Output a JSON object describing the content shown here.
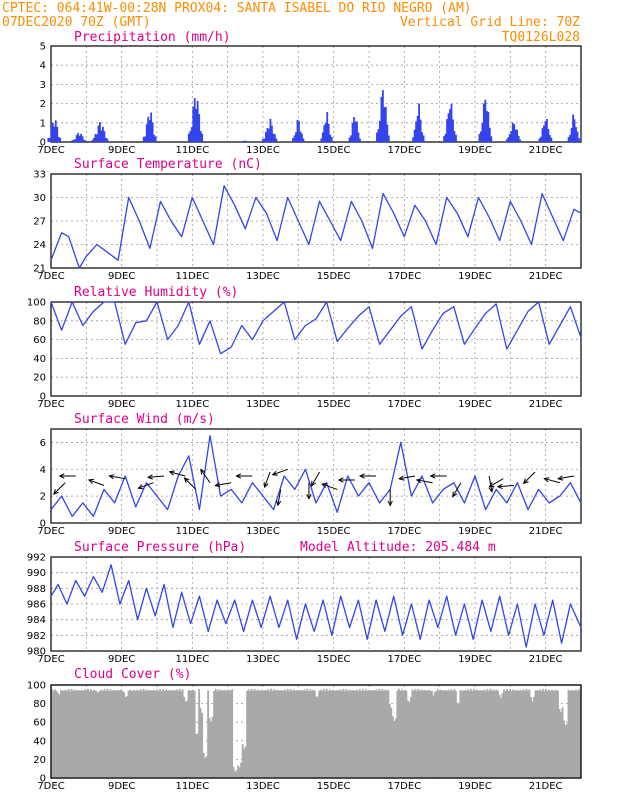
{
  "header": {
    "line1_left": "CPTEC:  064:41W-00:28N  PROX04: SANTA ISABEL DO RIO NEGRO (AM)",
    "line2_left": "07DEC2020 70Z (GMT)",
    "line2_right": "Vertical Grid Line: 70Z",
    "line3_right": "TQ0126L028"
  },
  "colors": {
    "series": "#3344ee",
    "cloud": "#a9a9a9",
    "title": "#e0008a",
    "header": "#ff8c00"
  },
  "chart_data": [
    {
      "type": "bar",
      "title": "Precipitation (mm/h)",
      "x_ticks": [
        "7DEC",
        "9DEC",
        "11DEC",
        "13DEC",
        "15DEC",
        "17DEC",
        "19DEC",
        "21DEC"
      ],
      "x_range_days": [
        7,
        22
      ],
      "ylim": [
        0,
        5
      ],
      "y_ticks": [
        0,
        1,
        2,
        3,
        4,
        5
      ],
      "bursts": [
        {
          "day": 7.1,
          "peak": 1.5,
          "width": 0.35
        },
        {
          "day": 7.8,
          "peak": 0.6,
          "width": 0.4
        },
        {
          "day": 8.4,
          "peak": 1.2,
          "width": 0.45
        },
        {
          "day": 9.8,
          "peak": 2.0,
          "width": 0.35
        },
        {
          "day": 11.1,
          "peak": 3.0,
          "width": 0.4
        },
        {
          "day": 12.5,
          "peak": 0.1,
          "width": 0.2
        },
        {
          "day": 13.2,
          "peak": 1.3,
          "width": 0.4
        },
        {
          "day": 14.0,
          "peak": 1.4,
          "width": 0.3
        },
        {
          "day": 14.8,
          "peak": 1.8,
          "width": 0.3
        },
        {
          "day": 15.6,
          "peak": 1.8,
          "width": 0.3
        },
        {
          "day": 16.4,
          "peak": 3.3,
          "width": 0.35
        },
        {
          "day": 17.4,
          "peak": 2.3,
          "width": 0.3
        },
        {
          "day": 18.3,
          "peak": 2.5,
          "width": 0.35
        },
        {
          "day": 19.3,
          "peak": 2.8,
          "width": 0.35
        },
        {
          "day": 20.1,
          "peak": 1.2,
          "width": 0.4
        },
        {
          "day": 21.0,
          "peak": 1.5,
          "width": 0.35
        },
        {
          "day": 21.8,
          "peak": 1.7,
          "width": 0.3
        }
      ]
    },
    {
      "type": "line",
      "title": "Surface Temperature (nC)",
      "x_ticks": [
        "7DEC",
        "9DEC",
        "11DEC",
        "13DEC",
        "15DEC",
        "17DEC",
        "19DEC",
        "21DEC"
      ],
      "ylim": [
        21,
        33
      ],
      "y_ticks": [
        21,
        24,
        27,
        30,
        33
      ],
      "x": [
        7.0,
        7.3,
        7.5,
        7.8,
        8.0,
        8.3,
        8.6,
        8.9,
        9.2,
        9.5,
        9.8,
        10.1,
        10.4,
        10.7,
        11.0,
        11.3,
        11.6,
        11.9,
        12.2,
        12.5,
        12.8,
        13.1,
        13.4,
        13.7,
        14.0,
        14.3,
        14.6,
        14.9,
        15.2,
        15.5,
        15.8,
        16.1,
        16.4,
        16.7,
        17.0,
        17.3,
        17.6,
        17.9,
        18.2,
        18.5,
        18.8,
        19.1,
        19.4,
        19.7,
        20.0,
        20.3,
        20.6,
        20.9,
        21.2,
        21.5,
        21.8,
        22.0
      ],
      "y": [
        22.0,
        25.5,
        25.0,
        21.0,
        22.5,
        24.0,
        23.0,
        22.0,
        30.0,
        27.0,
        23.5,
        29.5,
        27.0,
        25.0,
        30.0,
        27.0,
        24.0,
        31.5,
        29.0,
        26.0,
        30.0,
        28.0,
        24.5,
        30.0,
        27.0,
        24.0,
        29.5,
        27.0,
        24.5,
        29.5,
        27.0,
        23.5,
        30.5,
        28.0,
        25.0,
        29.0,
        27.0,
        24.0,
        30.0,
        28.0,
        25.0,
        30.0,
        27.5,
        24.5,
        29.5,
        27.0,
        24.0,
        30.5,
        27.5,
        24.5,
        28.5,
        28.0
      ]
    },
    {
      "type": "line",
      "title": "Relative Humidity (%)",
      "x_ticks": [
        "7DEC",
        "9DEC",
        "11DEC",
        "13DEC",
        "15DEC",
        "17DEC",
        "19DEC",
        "21DEC"
      ],
      "ylim": [
        0,
        100
      ],
      "y_ticks": [
        0,
        20,
        40,
        60,
        80,
        100
      ],
      "x": [
        7.0,
        7.3,
        7.6,
        7.9,
        8.2,
        8.5,
        8.8,
        9.1,
        9.4,
        9.7,
        10.0,
        10.3,
        10.6,
        10.9,
        11.2,
        11.5,
        11.8,
        12.1,
        12.4,
        12.7,
        13.0,
        13.3,
        13.6,
        13.9,
        14.2,
        14.5,
        14.8,
        15.1,
        15.4,
        15.7,
        16.0,
        16.3,
        16.6,
        16.9,
        17.2,
        17.5,
        17.8,
        18.1,
        18.4,
        18.7,
        19.0,
        19.3,
        19.6,
        19.9,
        20.2,
        20.5,
        20.8,
        21.1,
        21.4,
        21.7,
        22.0
      ],
      "y": [
        100,
        70,
        100,
        75,
        90,
        100,
        100,
        55,
        78,
        80,
        100,
        60,
        75,
        100,
        55,
        80,
        45,
        52,
        75,
        60,
        80,
        90,
        100,
        60,
        75,
        82,
        100,
        58,
        72,
        85,
        95,
        55,
        70,
        85,
        95,
        50,
        70,
        88,
        95,
        55,
        72,
        88,
        98,
        50,
        70,
        90,
        100,
        55,
        75,
        95,
        62
      ]
    },
    {
      "type": "line",
      "title": "Surface Wind (m/s)",
      "x_ticks": [
        "7DEC",
        "9DEC",
        "11DEC",
        "13DEC",
        "15DEC",
        "17DEC",
        "19DEC",
        "21DEC"
      ],
      "ylim": [
        0,
        7
      ],
      "y_ticks": [
        0,
        2,
        4,
        6
      ],
      "x": [
        7.0,
        7.3,
        7.6,
        7.9,
        8.2,
        8.5,
        8.8,
        9.1,
        9.4,
        9.7,
        10.0,
        10.3,
        10.6,
        10.9,
        11.2,
        11.5,
        11.8,
        12.1,
        12.4,
        12.7,
        13.0,
        13.3,
        13.6,
        13.9,
        14.2,
        14.5,
        14.8,
        15.1,
        15.4,
        15.7,
        16.0,
        16.3,
        16.6,
        16.9,
        17.2,
        17.5,
        17.8,
        18.1,
        18.4,
        18.7,
        19.0,
        19.3,
        19.6,
        19.9,
        20.2,
        20.5,
        20.8,
        21.1,
        21.4,
        21.7,
        22.0
      ],
      "y": [
        1.0,
        2.0,
        0.5,
        1.5,
        0.5,
        2.5,
        1.5,
        3.5,
        1.2,
        3.0,
        2.0,
        1.0,
        3.5,
        5.0,
        1.0,
        6.5,
        2.0,
        2.5,
        1.5,
        3.0,
        2.0,
        1.0,
        3.5,
        2.5,
        4.0,
        1.5,
        3.0,
        0.8,
        3.5,
        2.0,
        3.0,
        1.5,
        2.5,
        6.0,
        2.0,
        3.5,
        1.5,
        2.5,
        3.0,
        1.5,
        3.5,
        1.0,
        2.5,
        1.5,
        3.0,
        1.0,
        2.5,
        1.5,
        2.0,
        3.0,
        1.5
      ],
      "arrows": [
        {
          "day": 7.4,
          "speed": 3.0,
          "dir_deg": 135
        },
        {
          "day": 7.7,
          "speed": 3.5,
          "dir_deg": 180
        },
        {
          "day": 8.5,
          "speed": 2.8,
          "dir_deg": 200
        },
        {
          "day": 9.1,
          "speed": 3.3,
          "dir_deg": 190
        },
        {
          "day": 9.9,
          "speed": 3.0,
          "dir_deg": 160
        },
        {
          "day": 10.2,
          "speed": 3.5,
          "dir_deg": 175
        },
        {
          "day": 10.8,
          "speed": 3.5,
          "dir_deg": 195
        },
        {
          "day": 11.1,
          "speed": 2.5,
          "dir_deg": 225
        },
        {
          "day": 11.5,
          "speed": 3.0,
          "dir_deg": 235
        },
        {
          "day": 12.1,
          "speed": 3.0,
          "dir_deg": 170
        },
        {
          "day": 12.7,
          "speed": 3.5,
          "dir_deg": 180
        },
        {
          "day": 13.2,
          "speed": 3.8,
          "dir_deg": 110
        },
        {
          "day": 13.5,
          "speed": 2.5,
          "dir_deg": 100
        },
        {
          "day": 13.7,
          "speed": 4.0,
          "dir_deg": 160
        },
        {
          "day": 14.3,
          "speed": 3.0,
          "dir_deg": 90
        },
        {
          "day": 14.6,
          "speed": 3.8,
          "dir_deg": 120
        },
        {
          "day": 15.1,
          "speed": 2.5,
          "dir_deg": 200
        },
        {
          "day": 15.6,
          "speed": 3.2,
          "dir_deg": 180
        },
        {
          "day": 16.2,
          "speed": 3.5,
          "dir_deg": 180
        },
        {
          "day": 16.6,
          "speed": 2.5,
          "dir_deg": 90
        },
        {
          "day": 17.3,
          "speed": 3.5,
          "dir_deg": 170
        },
        {
          "day": 17.8,
          "speed": 3.0,
          "dir_deg": 190
        },
        {
          "day": 18.2,
          "speed": 3.5,
          "dir_deg": 180
        },
        {
          "day": 18.6,
          "speed": 3.0,
          "dir_deg": 120
        },
        {
          "day": 19.4,
          "speed": 3.5,
          "dir_deg": 80
        },
        {
          "day": 19.8,
          "speed": 3.3,
          "dir_deg": 150
        },
        {
          "day": 20.1,
          "speed": 2.8,
          "dir_deg": 175
        },
        {
          "day": 20.7,
          "speed": 3.8,
          "dir_deg": 135
        },
        {
          "day": 21.4,
          "speed": 3.0,
          "dir_deg": 195
        },
        {
          "day": 21.8,
          "speed": 3.5,
          "dir_deg": 170
        }
      ]
    },
    {
      "type": "line",
      "title": "Surface Pressure (hPa)",
      "subtitle": "Model Altitude: 205.484 m",
      "x_ticks": [
        "7DEC",
        "9DEC",
        "11DEC",
        "13DEC",
        "15DEC",
        "17DEC",
        "19DEC",
        "21DEC"
      ],
      "ylim": [
        980,
        992
      ],
      "y_ticks": [
        980,
        982,
        984,
        986,
        988,
        990,
        992
      ],
      "x": [
        7.0,
        7.2,
        7.45,
        7.7,
        7.95,
        8.2,
        8.45,
        8.7,
        8.95,
        9.2,
        9.45,
        9.7,
        9.95,
        10.2,
        10.45,
        10.7,
        10.95,
        11.2,
        11.45,
        11.7,
        11.95,
        12.2,
        12.45,
        12.7,
        12.95,
        13.2,
        13.45,
        13.7,
        13.95,
        14.2,
        14.45,
        14.7,
        14.95,
        15.2,
        15.45,
        15.7,
        15.95,
        16.2,
        16.45,
        16.7,
        16.95,
        17.2,
        17.45,
        17.7,
        17.95,
        18.2,
        18.45,
        18.7,
        18.95,
        19.2,
        19.45,
        19.7,
        19.95,
        20.2,
        20.45,
        20.7,
        20.95,
        21.2,
        21.45,
        21.7,
        22.0
      ],
      "y": [
        987,
        988.5,
        986,
        989,
        987,
        989.5,
        987.5,
        991,
        986,
        989,
        984,
        988,
        984.5,
        988.5,
        983,
        987.5,
        983.5,
        987,
        982.5,
        986.5,
        983.5,
        986.5,
        982.5,
        986.5,
        983,
        987,
        983,
        986.5,
        981.5,
        986,
        982.5,
        986.5,
        982,
        987,
        983,
        986.5,
        981.5,
        986.5,
        982.5,
        987,
        982,
        986,
        981.5,
        986.5,
        983,
        987,
        982,
        986,
        981.5,
        986.5,
        982.5,
        987,
        982,
        986,
        980.5,
        986,
        982,
        986.5,
        981,
        986,
        983
      ]
    },
    {
      "type": "bar",
      "title": "Cloud Cover (%)",
      "x_ticks": [
        "7DEC",
        "9DEC",
        "11DEC",
        "13DEC",
        "15DEC",
        "17DEC",
        "19DEC",
        "21DEC"
      ],
      "ylim": [
        0,
        100
      ],
      "y_ticks": [
        0,
        20,
        40,
        60,
        80,
        100
      ],
      "baseline": 96,
      "dips": [
        {
          "day": 7.2,
          "value": 88
        },
        {
          "day": 8.3,
          "value": 90
        },
        {
          "day": 9.1,
          "value": 85
        },
        {
          "day": 10.8,
          "value": 80
        },
        {
          "day": 11.1,
          "value": 45
        },
        {
          "day": 11.25,
          "value": 70
        },
        {
          "day": 11.35,
          "value": 20
        },
        {
          "day": 11.5,
          "value": 60
        },
        {
          "day": 12.2,
          "value": 5
        },
        {
          "day": 12.3,
          "value": 10
        },
        {
          "day": 12.45,
          "value": 30
        },
        {
          "day": 14.5,
          "value": 85
        },
        {
          "day": 16.6,
          "value": 75
        },
        {
          "day": 16.7,
          "value": 60
        },
        {
          "day": 17.1,
          "value": 80
        },
        {
          "day": 17.8,
          "value": 88
        },
        {
          "day": 18.5,
          "value": 78
        },
        {
          "day": 19.7,
          "value": 85
        },
        {
          "day": 20.6,
          "value": 82
        },
        {
          "day": 21.4,
          "value": 70
        },
        {
          "day": 21.55,
          "value": 55
        }
      ]
    }
  ]
}
